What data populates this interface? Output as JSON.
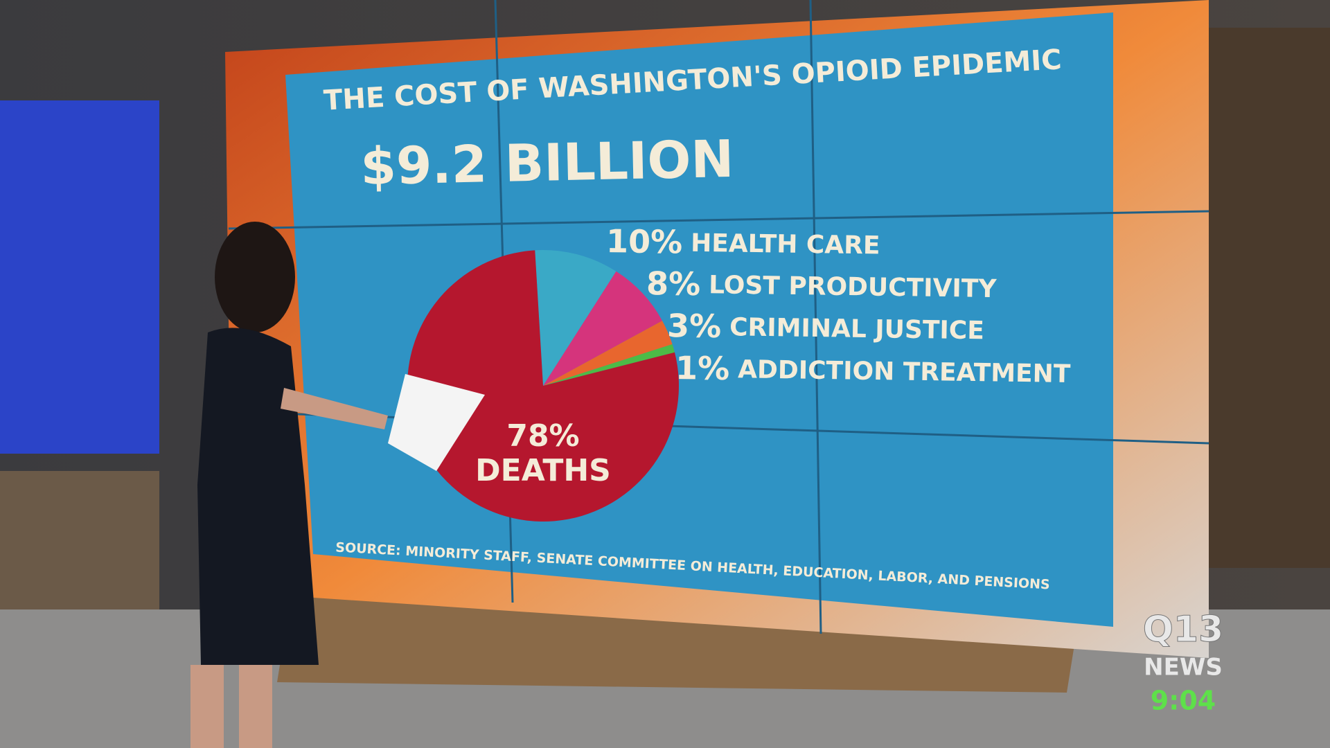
{
  "chart_data": {
    "type": "pie",
    "title": "THE COST OF WASHINGTON'S OPIOID EPIDEMIC",
    "subtitle": "$9.2 BILLION",
    "categories": [
      "HEALTH CARE",
      "LOST PRODUCTIVITY",
      "CRIMINAL JUSTICE",
      "ADDICTION TREATMENT",
      "DEATHS"
    ],
    "values": [
      10,
      8,
      3,
      1,
      78
    ],
    "value_labels": [
      "10%",
      "8%",
      "3%",
      "1%",
      "78%"
    ],
    "colors": [
      "#3aa9c6",
      "#d5347c",
      "#e8662e",
      "#4dbb47",
      "#b5172e"
    ],
    "source": "SOURCE: MINORITY STAFF, SENATE COMMITTEE ON HEALTH, EDUCATION, LABOR, AND PENSIONS"
  },
  "logo": {
    "line1": "Q13",
    "line2": "NEWS"
  },
  "clock": "9:04"
}
